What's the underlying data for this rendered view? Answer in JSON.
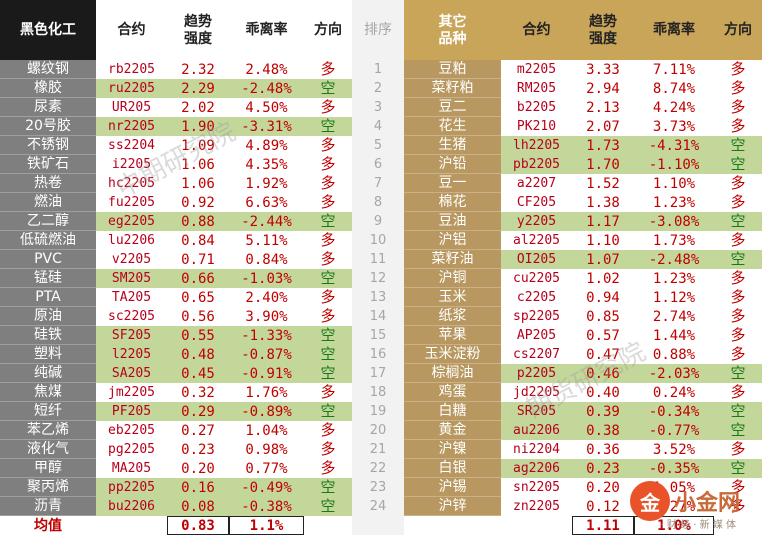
{
  "header": {
    "left_section": "黑色化工",
    "contract": "合约",
    "trend": "趋势强度",
    "deviation": "乖离率",
    "direction": "方向",
    "rank": "排序",
    "right_section": "其它品种"
  },
  "colors": {
    "dark_header": "#1a1a1a",
    "gold_header": "#c9a55a",
    "name_col_left": "#7f7f7f",
    "name_col_right": "#b89860",
    "green_row": "#c4d79b",
    "rank_col": "#f2f2f2",
    "up_red": "#c00000",
    "down_green": "#1a7a1a"
  },
  "chart_data": {
    "type": "table",
    "columns": [
      "品种",
      "合约",
      "趋势强度",
      "乖离率",
      "方向"
    ],
    "left_table": [
      {
        "name": "螺纹钢",
        "contract": "rb2205",
        "trend": "2.32",
        "deviation": "2.48%",
        "direction": "多",
        "green": false
      },
      {
        "name": "橡胶",
        "contract": "ru2205",
        "trend": "2.29",
        "deviation": "-2.48%",
        "direction": "空",
        "green": true
      },
      {
        "name": "尿素",
        "contract": "UR205",
        "trend": "2.02",
        "deviation": "4.50%",
        "direction": "多",
        "green": false
      },
      {
        "name": "20号胶",
        "contract": "nr2205",
        "trend": "1.90",
        "deviation": "-3.31%",
        "direction": "空",
        "green": true
      },
      {
        "name": "不锈钢",
        "contract": "ss2204",
        "trend": "1.09",
        "deviation": "4.89%",
        "direction": "多",
        "green": false
      },
      {
        "name": "铁矿石",
        "contract": "i2205",
        "trend": "1.06",
        "deviation": "4.35%",
        "direction": "多",
        "green": false
      },
      {
        "name": "热卷",
        "contract": "hc2205",
        "trend": "1.06",
        "deviation": "1.92%",
        "direction": "多",
        "green": false
      },
      {
        "name": "燃油",
        "contract": "fu2205",
        "trend": "0.92",
        "deviation": "6.63%",
        "direction": "多",
        "green": false
      },
      {
        "name": "乙二醇",
        "contract": "eg2205",
        "trend": "0.88",
        "deviation": "-2.44%",
        "direction": "空",
        "green": true
      },
      {
        "name": "低硫燃油",
        "contract": "lu2206",
        "trend": "0.84",
        "deviation": "5.11%",
        "direction": "多",
        "green": false
      },
      {
        "name": "PVC",
        "contract": "v2205",
        "trend": "0.71",
        "deviation": "0.84%",
        "direction": "多",
        "green": false
      },
      {
        "name": "锰硅",
        "contract": "SM205",
        "trend": "0.66",
        "deviation": "-1.03%",
        "direction": "空",
        "green": true
      },
      {
        "name": "PTA",
        "contract": "TA205",
        "trend": "0.65",
        "deviation": "2.40%",
        "direction": "多",
        "green": false
      },
      {
        "name": "原油",
        "contract": "sc2205",
        "trend": "0.56",
        "deviation": "3.90%",
        "direction": "多",
        "green": false
      },
      {
        "name": "硅铁",
        "contract": "SF205",
        "trend": "0.55",
        "deviation": "-1.33%",
        "direction": "空",
        "green": true
      },
      {
        "name": "塑料",
        "contract": "l2205",
        "trend": "0.48",
        "deviation": "-0.87%",
        "direction": "空",
        "green": true
      },
      {
        "name": "纯碱",
        "contract": "SA205",
        "trend": "0.45",
        "deviation": "-0.91%",
        "direction": "空",
        "green": true
      },
      {
        "name": "焦煤",
        "contract": "jm2205",
        "trend": "0.32",
        "deviation": "1.76%",
        "direction": "多",
        "green": false
      },
      {
        "name": "短纤",
        "contract": "PF205",
        "trend": "0.29",
        "deviation": "-0.89%",
        "direction": "空",
        "green": true
      },
      {
        "name": "苯乙烯",
        "contract": "eb2205",
        "trend": "0.27",
        "deviation": "1.04%",
        "direction": "多",
        "green": false
      },
      {
        "name": "液化气",
        "contract": "pg2205",
        "trend": "0.23",
        "deviation": "0.98%",
        "direction": "多",
        "green": false
      },
      {
        "name": "甲醇",
        "contract": "MA205",
        "trend": "0.20",
        "deviation": "0.77%",
        "direction": "多",
        "green": false
      },
      {
        "name": "聚丙烯",
        "contract": "pp2205",
        "trend": "0.16",
        "deviation": "-0.49%",
        "direction": "空",
        "green": true
      },
      {
        "name": "沥青",
        "contract": "bu2206",
        "trend": "0.08",
        "deviation": "-0.38%",
        "direction": "空",
        "green": true
      }
    ],
    "ranks": [
      "1",
      "2",
      "3",
      "4",
      "5",
      "6",
      "7",
      "8",
      "9",
      "10",
      "11",
      "12",
      "13",
      "14",
      "15",
      "16",
      "17",
      "18",
      "19",
      "20",
      "21",
      "22",
      "23",
      "24"
    ],
    "right_table": [
      {
        "name": "豆粕",
        "contract": "m2205",
        "trend": "3.33",
        "deviation": "7.11%",
        "direction": "多",
        "green": false
      },
      {
        "name": "菜籽粕",
        "contract": "RM205",
        "trend": "2.94",
        "deviation": "8.74%",
        "direction": "多",
        "green": false
      },
      {
        "name": "豆二",
        "contract": "b2205",
        "trend": "2.13",
        "deviation": "4.24%",
        "direction": "多",
        "green": false
      },
      {
        "name": "花生",
        "contract": "PK210",
        "trend": "2.07",
        "deviation": "3.73%",
        "direction": "多",
        "green": false
      },
      {
        "name": "生猪",
        "contract": "lh2205",
        "trend": "1.73",
        "deviation": "-4.31%",
        "direction": "空",
        "green": true
      },
      {
        "name": "沪铅",
        "contract": "pb2205",
        "trend": "1.70",
        "deviation": "-1.10%",
        "direction": "空",
        "green": true
      },
      {
        "name": "豆一",
        "contract": "a2207",
        "trend": "1.52",
        "deviation": "1.10%",
        "direction": "多",
        "green": false
      },
      {
        "name": "棉花",
        "contract": "CF205",
        "trend": "1.38",
        "deviation": "1.23%",
        "direction": "多",
        "green": false
      },
      {
        "name": "豆油",
        "contract": "y2205",
        "trend": "1.17",
        "deviation": "-3.08%",
        "direction": "空",
        "green": true
      },
      {
        "name": "沪铝",
        "contract": "al2205",
        "trend": "1.10",
        "deviation": "1.73%",
        "direction": "多",
        "green": false
      },
      {
        "name": "菜籽油",
        "contract": "OI205",
        "trend": "1.07",
        "deviation": "-2.48%",
        "direction": "空",
        "green": true
      },
      {
        "name": "沪铜",
        "contract": "cu2205",
        "trend": "1.02",
        "deviation": "1.23%",
        "direction": "多",
        "green": false
      },
      {
        "name": "玉米",
        "contract": "c2205",
        "trend": "0.94",
        "deviation": "1.12%",
        "direction": "多",
        "green": false
      },
      {
        "name": "纸浆",
        "contract": "sp2205",
        "trend": "0.85",
        "deviation": "2.74%",
        "direction": "多",
        "green": false
      },
      {
        "name": "苹果",
        "contract": "AP205",
        "trend": "0.57",
        "deviation": "1.44%",
        "direction": "多",
        "green": false
      },
      {
        "name": "玉米淀粉",
        "contract": "cs2207",
        "trend": "0.47",
        "deviation": "0.88%",
        "direction": "多",
        "green": false
      },
      {
        "name": "棕榈油",
        "contract": "p2205",
        "trend": "0.46",
        "deviation": "-2.03%",
        "direction": "空",
        "green": true
      },
      {
        "name": "鸡蛋",
        "contract": "jd2205",
        "trend": "0.40",
        "deviation": "0.24%",
        "direction": "多",
        "green": false
      },
      {
        "name": "白糖",
        "contract": "SR205",
        "trend": "0.39",
        "deviation": "-0.34%",
        "direction": "空",
        "green": true
      },
      {
        "name": "黄金",
        "contract": "au2206",
        "trend": "0.38",
        "deviation": "-0.77%",
        "direction": "空",
        "green": true
      },
      {
        "name": "沪镍",
        "contract": "ni2204",
        "trend": "0.36",
        "deviation": "3.52%",
        "direction": "多",
        "green": false
      },
      {
        "name": "白银",
        "contract": "ag2206",
        "trend": "0.23",
        "deviation": "-0.35%",
        "direction": "空",
        "green": true
      },
      {
        "name": "沪锡",
        "contract": "sn2205",
        "trend": "0.20",
        "deviation": "1.05%",
        "direction": "多",
        "green": false
      },
      {
        "name": "沪锌",
        "contract": "zn2205",
        "trend": "0.12",
        "deviation": "0.27%",
        "direction": "多",
        "green": false
      }
    ],
    "totals": {
      "label": "均值",
      "left_trend": "0.83",
      "left_deviation": "1.1%",
      "right_trend": "1.11",
      "right_deviation": "1.0%"
    }
  },
  "watermarks": [
    "中期研究院",
    "期货研究院"
  ],
  "logo": {
    "mark": "金",
    "text": "小金网",
    "subtitle": "· 财 经 · 新 媒 体"
  }
}
